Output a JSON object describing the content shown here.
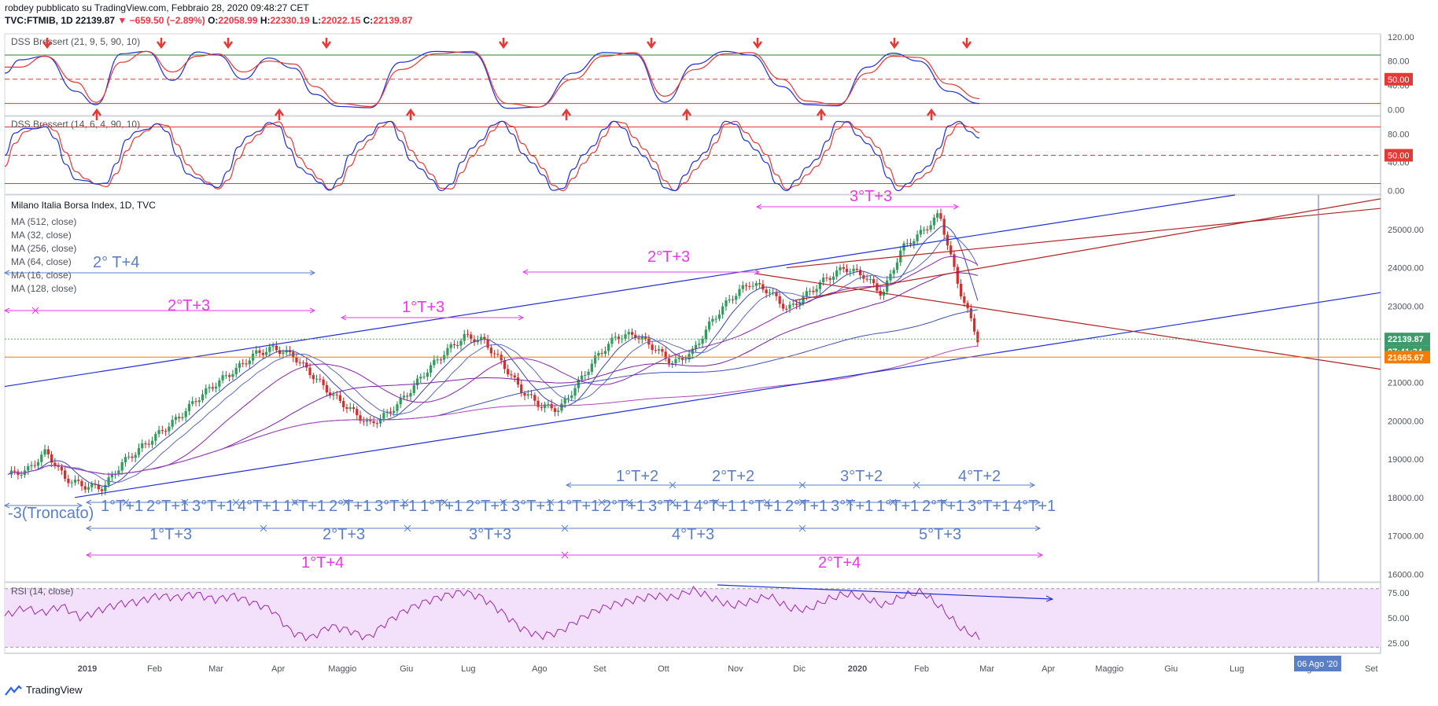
{
  "header": {
    "author_line": "robdey pubblicato su TradingView.com, Febbraio 28, 2020 09:48:27 CET",
    "symbol": "TVC:FTMIB, 1D",
    "last": "22139.87",
    "change": "−659.50 (−2.89%)",
    "open_label": "O:",
    "open": "22058.99",
    "high_label": "H:",
    "high": "22330.19",
    "low_label": "L:",
    "low": "22022.15",
    "close_label": "C:",
    "close": "22139.87"
  },
  "footer": {
    "brand": "TradingView"
  },
  "colors": {
    "blue": "#1f2fd6",
    "red": "#e53935",
    "magenta": "#e83be8",
    "darkred": "#b22222",
    "orange": "#f57c00",
    "rsi_fill": "#f3e0fa",
    "grid": "#eceff3",
    "up": "#26a69a",
    "down": "#ef5350"
  },
  "chart_data": [
    {
      "type": "line",
      "pane": "dss1",
      "title": "DSS Bressert (21, 9, 5, 90, 10)",
      "y_ticks": [
        "120.00",
        "80.00",
        "40.00",
        "0.00"
      ],
      "level_label": "50.00",
      "ylim": [
        -10,
        125
      ],
      "level_lines": [
        90,
        50,
        10
      ],
      "series": [
        {
          "color": "blue",
          "x": [
            0,
            3,
            8,
            14,
            18,
            23,
            28,
            33,
            38,
            42,
            47,
            52,
            57,
            61,
            66,
            72,
            78,
            85,
            92,
            99,
            105,
            112,
            118,
            124,
            130,
            136,
            142,
            147,
            153,
            158,
            164,
            170,
            175,
            180,
            186,
            192
          ],
          "values": [
            60,
            82,
            88,
            30,
            8,
            92,
            96,
            48,
            95,
            90,
            50,
            85,
            68,
            25,
            5,
            3,
            78,
            96,
            94,
            2,
            4,
            60,
            94,
            92,
            12,
            75,
            96,
            90,
            38,
            8,
            6,
            70,
            93,
            80,
            30,
            10
          ]
        },
        {
          "color": "red",
          "x": [
            0,
            3,
            8,
            14,
            18,
            23,
            28,
            33,
            38,
            42,
            47,
            52,
            57,
            61,
            66,
            72,
            78,
            85,
            92,
            99,
            105,
            112,
            118,
            124,
            130,
            136,
            142,
            147,
            153,
            158,
            164,
            170,
            175,
            180,
            186,
            192
          ],
          "values": [
            70,
            70,
            88,
            45,
            12,
            78,
            96,
            62,
            88,
            92,
            62,
            80,
            75,
            38,
            10,
            5,
            66,
            92,
            96,
            10,
            4,
            50,
            88,
            94,
            22,
            66,
            92,
            94,
            50,
            14,
            8,
            60,
            88,
            86,
            42,
            18
          ]
        }
      ],
      "signals_down": [
        2,
        9,
        16,
        22,
        35,
        45,
        50,
        60,
        66,
        69
      ],
      "signals_up": [
        3,
        19,
        23,
        38,
        46,
        53,
        61,
        66
      ]
    },
    {
      "type": "line",
      "pane": "dss2",
      "title": "DSS Bressert (14, 6, 4, 90, 10)",
      "y_ticks": [
        "80.00",
        "40.00",
        "0.00"
      ],
      "level_label": "50.00",
      "ylim": [
        -5,
        105
      ],
      "level_lines": [
        90,
        50,
        10
      ]
    },
    {
      "type": "candlestick",
      "pane": "price",
      "title": "Milano Italia Borsa Index, 1D, TVC",
      "legend": [
        "MA (512, close)",
        "MA (32, close)",
        "MA (256, close)",
        "MA (64, close)",
        "MA (16, close)",
        "MA (128, close)"
      ],
      "y_ticks": [
        "25000.00",
        "24000.00",
        "23000.00",
        "22000.00",
        "21000.00",
        "20000.00",
        "19000.00",
        "18000.00",
        "17000.00",
        "16000.00"
      ],
      "ylim": [
        15800,
        25900
      ],
      "last_price_label": "22139.87",
      "countdown_label": "07:41:34",
      "level_label": "21665.67",
      "close_path": [
        18600,
        18700,
        19200,
        18500,
        18300,
        18250,
        18900,
        19300,
        19700,
        20100,
        20600,
        21000,
        21350,
        21750,
        21900,
        21700,
        21200,
        20700,
        20300,
        19900,
        20200,
        20700,
        21300,
        21800,
        22200,
        22100,
        21500,
        20800,
        20400,
        20300,
        21000,
        21700,
        22200,
        22250,
        21900,
        21500,
        21800,
        22600,
        23200,
        23600,
        23400,
        22900,
        23300,
        23700,
        24000,
        23800,
        23300,
        24500,
        24900,
        25400,
        23500,
        22140
      ],
      "cycle_labels_row1": [
        "1°T+1",
        "2°T+1",
        "3°T+1",
        "4°T+1",
        "1°T+1",
        "2°T+1",
        "3°T+1",
        "1°T+1",
        "2°T+1",
        "3°T+1",
        "1°T+1",
        "2°T+1",
        "3°T+1",
        "4°T+1",
        "1°T+1",
        "2°T+1",
        "3°T+1",
        "1°T+1",
        "2°T+1",
        "3°T+1",
        "4°T+1"
      ],
      "annotations": [
        {
          "text": "2° T+4",
          "color": "blue"
        },
        {
          "text": "2°T+3",
          "color": "magenta"
        },
        {
          "text": "1°T+3",
          "color": "magenta"
        },
        {
          "text": "2°T+3",
          "color": "magenta"
        },
        {
          "text": "3°T+3",
          "color": "magenta"
        },
        {
          "text": "1°T+2",
          "color": "blue"
        },
        {
          "text": "2°T+2",
          "color": "blue"
        },
        {
          "text": "3°T+2",
          "color": "blue"
        },
        {
          "text": "4°T+2",
          "color": "blue"
        },
        {
          "text": "-3(Troncato)",
          "color": "blue"
        },
        {
          "text": "1°T+3",
          "color": "blue"
        },
        {
          "text": "2°T+3",
          "color": "blue"
        },
        {
          "text": "3°T+3",
          "color": "blue"
        },
        {
          "text": "4°T+3",
          "color": "blue"
        },
        {
          "text": "5°T+3",
          "color": "blue"
        },
        {
          "text": "1°T+4",
          "color": "magenta"
        },
        {
          "text": "2°T+4",
          "color": "magenta"
        }
      ]
    },
    {
      "type": "line",
      "pane": "rsi",
      "title": "RSI (14, close)",
      "y_ticks": [
        "75.00",
        "50.00",
        "25.00"
      ],
      "ylim": [
        15,
        85
      ],
      "series": [
        {
          "color": "magenta",
          "values": [
            52,
            60,
            55,
            62,
            50,
            58,
            64,
            66,
            72,
            70,
            74,
            68,
            72,
            65,
            58,
            36,
            30,
            42,
            38,
            30,
            46,
            58,
            66,
            72,
            76,
            70,
            56,
            40,
            32,
            36,
            48,
            58,
            64,
            68,
            72,
            70,
            78,
            70,
            62,
            66,
            72,
            60,
            58,
            68,
            74,
            70,
            62,
            72,
            76,
            60,
            40,
            30
          ]
        }
      ]
    }
  ],
  "x_axis": [
    "2019",
    "Feb",
    "Mar",
    "Apr",
    "Maggio",
    "Giu",
    "Lug",
    "Ago",
    "Set",
    "Ott",
    "Nov",
    "Dic",
    "2020",
    "Feb",
    "Mar",
    "Apr",
    "Maggio",
    "Giu",
    "Lug",
    "Ago",
    "Set"
  ],
  "x_axis_highlight": "06 Ago '20"
}
